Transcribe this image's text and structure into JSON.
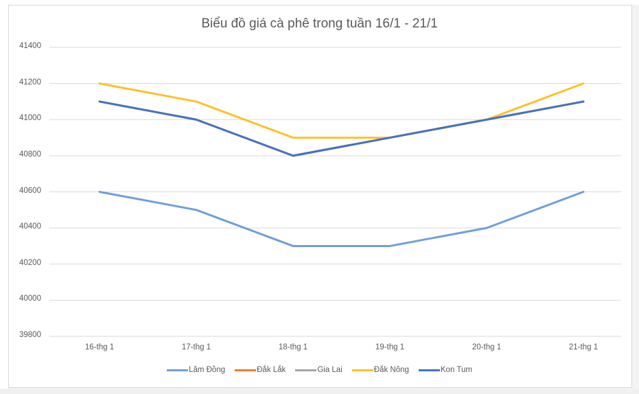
{
  "chart_data": {
    "type": "line",
    "title": "Biểu đồ giá cà phê trong tuần 16/1 - 21/1",
    "xlabel": "",
    "ylabel": "",
    "categories": [
      "16-thg 1",
      "17-thg 1",
      "18-thg 1",
      "19-thg 1",
      "20-thg 1",
      "21-thg 1"
    ],
    "yticks": [
      "41400",
      "41200",
      "41000",
      "40800",
      "40600",
      "40400",
      "40200",
      "40000",
      "39800"
    ],
    "ylim": [
      39800,
      41400
    ],
    "grid": true,
    "legend_position": "bottom",
    "series": [
      {
        "name": "Lâm Đồng",
        "color": "#6f9fd8",
        "values": [
          40600,
          40500,
          40300,
          40300,
          40400,
          40600
        ]
      },
      {
        "name": "Đắk Lắk",
        "color": "#ed7d31",
        "values": [
          41100,
          41000,
          40800,
          40900,
          41000,
          41100
        ]
      },
      {
        "name": "Gia Lai",
        "color": "#a5a5a5",
        "values": [
          41100,
          41000,
          40800,
          40900,
          41000,
          41100
        ]
      },
      {
        "name": "Đắk Nông",
        "color": "#ffc02e",
        "values": [
          41200,
          41100,
          40900,
          40900,
          41000,
          41200
        ]
      },
      {
        "name": "Kon Tum",
        "color": "#4472c4",
        "values": [
          41100,
          41000,
          40800,
          40900,
          41000,
          41100
        ]
      }
    ]
  }
}
